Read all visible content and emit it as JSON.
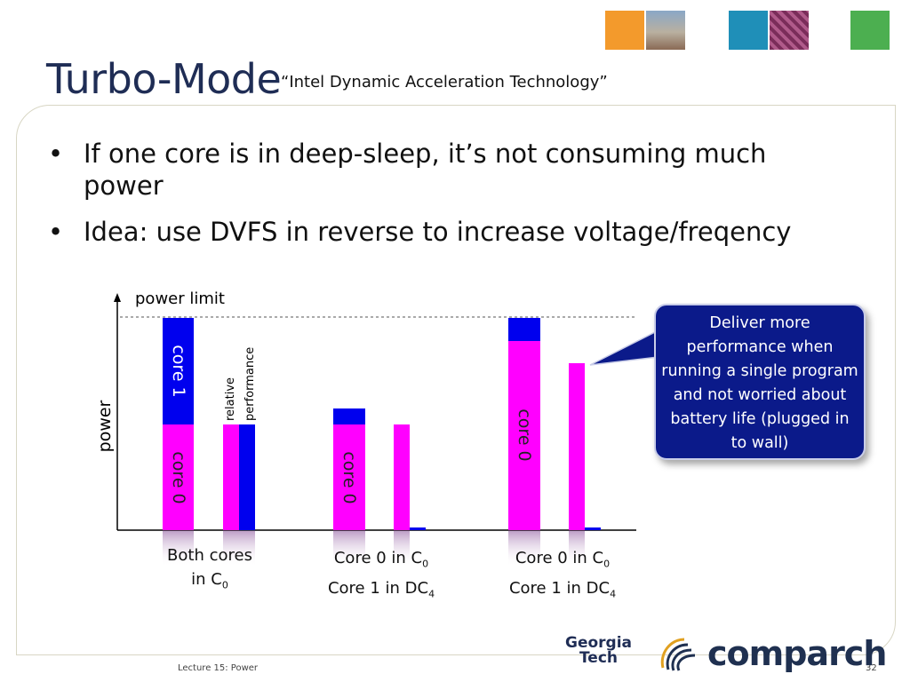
{
  "slide": {
    "title": "Turbo-Mode",
    "subtitle": "“Intel Dynamic Acceleration Technology”",
    "bullets": [
      "If one core is in deep-sleep, it’s not consuming much power",
      "Idea: use DVFS in reverse to increase voltage/freqency"
    ],
    "bullet_glyph": "•"
  },
  "diagram": {
    "y_axis_label": "power",
    "power_limit_label": "power limit",
    "relative_label_line1": "relative",
    "relative_label_line2": "performance",
    "bar_labels": {
      "core1": "core 1",
      "core0": "core 0"
    },
    "groups": [
      {
        "line1": "Both cores",
        "line2_main": "in C",
        "line2_sub": "0"
      },
      {
        "line1_main": "Core 0 in C",
        "line1_sub": "0",
        "line2_main": "Core 1 in DC",
        "line2_sub": "4"
      },
      {
        "line1_main": "Core 0 in C",
        "line1_sub": "0",
        "line2_main": "Core 1 in DC",
        "line2_sub": "4"
      }
    ],
    "callout": "Deliver more performance when running a single program and not worried about battery life (plugged in to wall)",
    "colors": {
      "core0": "#ff00ff",
      "core1": "#0000ee",
      "callout_bg": "#0b1a8a",
      "title": "#1f2d55"
    }
  },
  "footer": {
    "lecture": "Lecture 15: Power",
    "page": "32"
  },
  "logos": {
    "gt_line1": "Georgia",
    "gt_line2": "Tech",
    "comparch": "comparch"
  }
}
